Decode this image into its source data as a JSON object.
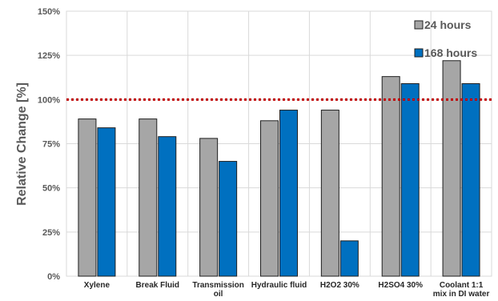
{
  "chart_data": {
    "type": "bar",
    "categories": [
      [
        "Xylene"
      ],
      [
        "Break Fluid"
      ],
      [
        "Transmission",
        "oil"
      ],
      [
        "Hydraulic fluid"
      ],
      [
        "H2O2 30%"
      ],
      [
        "H2SO4 30%"
      ],
      [
        "Coolant 1:1",
        "mix in DI water"
      ]
    ],
    "series": [
      {
        "name": "24 hours",
        "color": "#a6a6a6",
        "values": [
          89,
          89,
          78,
          88,
          94,
          113,
          122
        ]
      },
      {
        "name": "168 hours",
        "color": "#0070c0",
        "values": [
          84,
          79,
          65,
          94,
          20,
          109,
          109
        ]
      }
    ],
    "ylabel": "Relative Change [%]",
    "ylim": [
      0,
      150
    ],
    "yticks": [
      "0%",
      "25%",
      "50%",
      "75%",
      "100%",
      "125%",
      "150%"
    ],
    "reference_line": {
      "value": 100,
      "color": "#c00000",
      "style": "dotted"
    },
    "grid": true,
    "legend_position": "top-right"
  }
}
